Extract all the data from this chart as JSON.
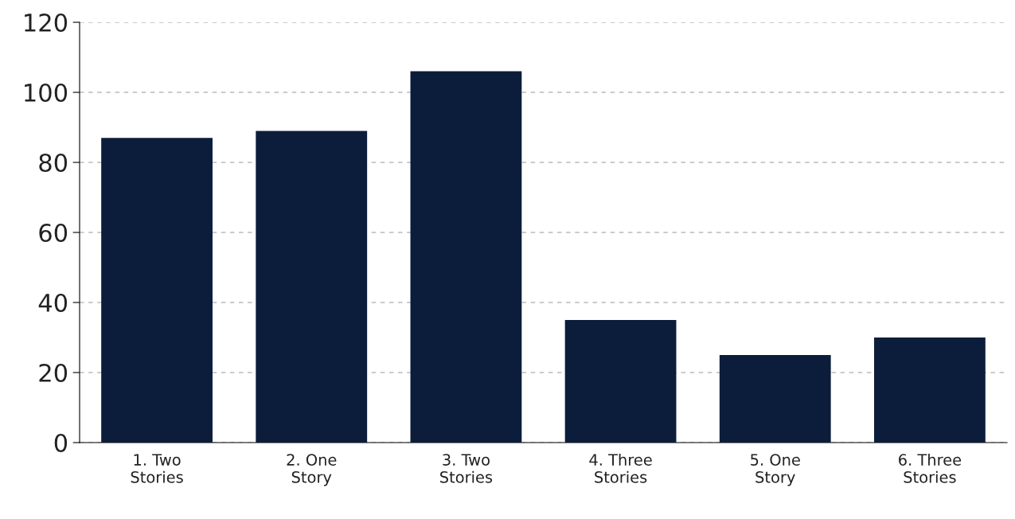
{
  "chart_data": {
    "type": "bar",
    "categories": [
      "1. Two\nStories",
      "2. One\nStory",
      "3. Two\nStories",
      "4. Three\nStories",
      "5. One\nStory",
      "6. Three\nStories"
    ],
    "values": [
      87,
      89,
      106,
      35,
      25,
      30
    ],
    "color": "#0b1d3a",
    "ylim": [
      0,
      120
    ],
    "yticks": [
      0,
      20,
      40,
      60,
      80,
      100,
      120
    ],
    "grid": "y"
  }
}
